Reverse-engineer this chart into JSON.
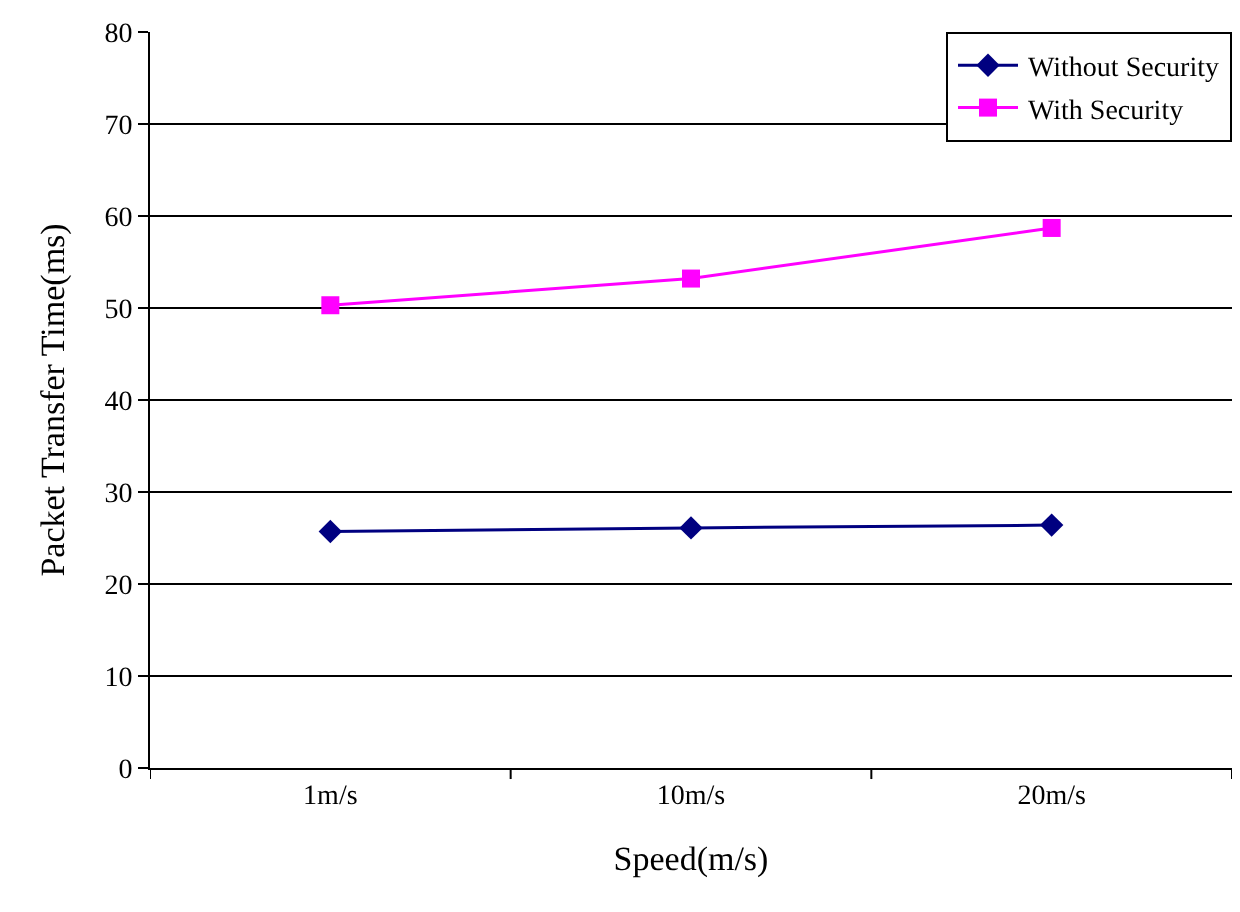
{
  "chart_data": {
    "type": "line",
    "xlabel": "Speed(m/s)",
    "ylabel": "Packet Transfer Time(ms)",
    "categories": [
      "1m/s",
      "10m/s",
      "20m/s"
    ],
    "series": [
      {
        "name": "Without Security",
        "color": "#000080",
        "marker": "diamond",
        "values": [
          25.7,
          26.1,
          26.4
        ]
      },
      {
        "name": "With Security",
        "color": "#ff00ff",
        "marker": "square",
        "values": [
          50.3,
          53.2,
          58.7
        ]
      }
    ],
    "ylim": [
      0,
      80
    ],
    "yticks": [
      0,
      10,
      20,
      30,
      40,
      50,
      60,
      70,
      80
    ],
    "grid": "y",
    "legend": "top right",
    "line_style": "solid"
  }
}
